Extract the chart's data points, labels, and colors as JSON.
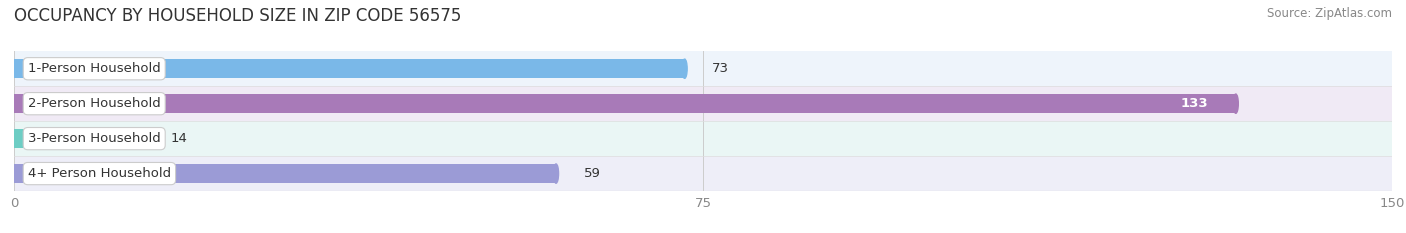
{
  "title": "OCCUPANCY BY HOUSEHOLD SIZE IN ZIP CODE 56575",
  "source": "Source: ZipAtlas.com",
  "categories": [
    "1-Person Household",
    "2-Person Household",
    "3-Person Household",
    "4+ Person Household"
  ],
  "values": [
    73,
    133,
    14,
    59
  ],
  "bar_colors": [
    "#7ab8e8",
    "#a87ab8",
    "#6dcdc4",
    "#9b9bd6"
  ],
  "row_bg_colors": [
    "#eef4fb",
    "#f0eaf5",
    "#eaf6f5",
    "#eeeef8"
  ],
  "row_alt_bg": "#f7f7f7",
  "xlim": [
    0,
    150
  ],
  "xticks": [
    0,
    75,
    150
  ],
  "title_fontsize": 12,
  "source_fontsize": 8.5,
  "label_fontsize": 9.5,
  "value_fontsize": 9.5,
  "bg_color": "#ffffff",
  "title_color": "#333333",
  "source_color": "#888888",
  "label_text_color": "#333333",
  "value_text_color": "#333333",
  "value_text_color_inside": "#ffffff",
  "tick_color": "#888888",
  "grid_color": "#cccccc"
}
